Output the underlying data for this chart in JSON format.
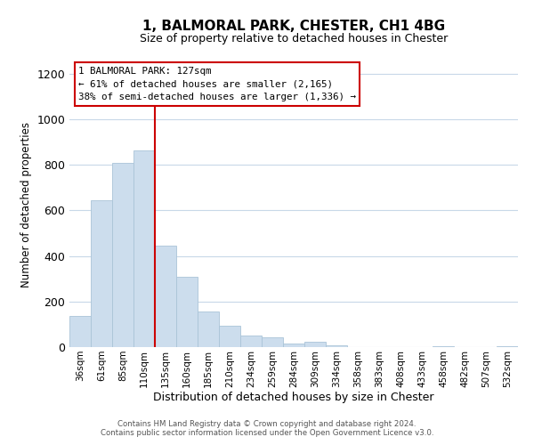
{
  "title": "1, BALMORAL PARK, CHESTER, CH1 4BG",
  "subtitle": "Size of property relative to detached houses in Chester",
  "xlabel": "Distribution of detached houses by size in Chester",
  "ylabel": "Number of detached properties",
  "bar_color": "#ccdded",
  "bar_edge_color": "#aac4d8",
  "categories": [
    "36sqm",
    "61sqm",
    "85sqm",
    "110sqm",
    "135sqm",
    "160sqm",
    "185sqm",
    "210sqm",
    "234sqm",
    "259sqm",
    "284sqm",
    "309sqm",
    "334sqm",
    "358sqm",
    "383sqm",
    "408sqm",
    "433sqm",
    "458sqm",
    "482sqm",
    "507sqm",
    "532sqm"
  ],
  "values": [
    135,
    645,
    810,
    865,
    445,
    310,
    158,
    95,
    52,
    42,
    17,
    22,
    8,
    0,
    0,
    0,
    0,
    5,
    0,
    0,
    2
  ],
  "vline_color": "#cc0000",
  "vline_x": 3.5,
  "annotation_title": "1 BALMORAL PARK: 127sqm",
  "annotation_line1": "← 61% of detached houses are smaller (2,165)",
  "annotation_line2": "38% of semi-detached houses are larger (1,336) →",
  "ylim": [
    0,
    1250
  ],
  "yticks": [
    0,
    200,
    400,
    600,
    800,
    1000,
    1200
  ],
  "footer1": "Contains HM Land Registry data © Crown copyright and database right 2024.",
  "footer2": "Contains public sector information licensed under the Open Government Licence v3.0.",
  "background_color": "#ffffff",
  "grid_color": "#c8d8e8",
  "title_fontsize": 11,
  "subtitle_fontsize": 9,
  "ylabel_fontsize": 8.5,
  "xlabel_fontsize": 9
}
